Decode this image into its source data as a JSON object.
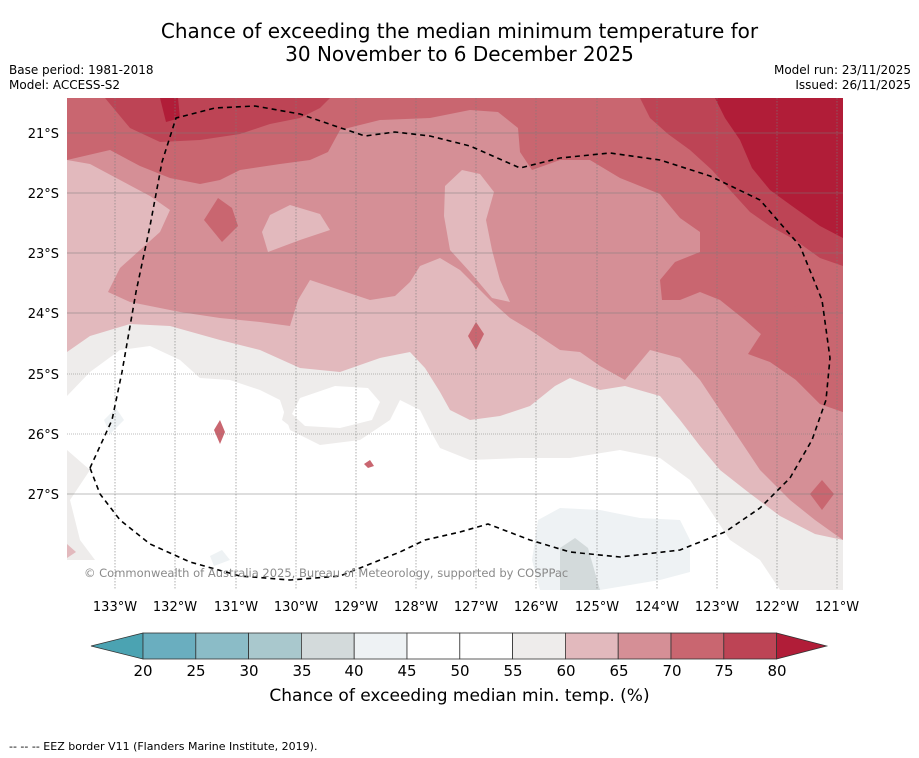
{
  "title": {
    "line1": "Chance of exceeding the median minimum temperature for",
    "line2": "30 November to 6 December 2025"
  },
  "meta": {
    "base_period": "Base period: 1981-2018",
    "model": "Model: ACCESS-S2",
    "model_run": "Model run: 23/11/2025",
    "issued": "Issued: 26/11/2025"
  },
  "map": {
    "lat_labels": [
      "21°S",
      "22°S",
      "23°S",
      "24°S",
      "25°S",
      "26°S",
      "27°S"
    ],
    "lon_labels": [
      "133°W",
      "132°W",
      "131°W",
      "130°W",
      "129°W",
      "128°W",
      "127°W",
      "126°W",
      "125°W",
      "124°W",
      "123°W",
      "122°W",
      "121°W"
    ],
    "copyright": "© Commonwealth of Australia 2025, Bureau of Meteorology, supported by COSPPac"
  },
  "colorbar": {
    "ticks": [
      "20",
      "25",
      "30",
      "35",
      "40",
      "45",
      "50",
      "55",
      "60",
      "65",
      "70",
      "75",
      "80"
    ],
    "colors": [
      "#4ba3b2",
      "#6aaebf",
      "#8bbcc7",
      "#a9c8cd",
      "#d3dadb",
      "#eef2f4",
      "#ffffff",
      "#ffffff",
      "#eeeceb",
      "#e2b9bd",
      "#d58f96",
      "#c96670",
      "#bd4455",
      "#b11d38"
    ],
    "title": "Chance of exceeding median min. temp. (%)"
  },
  "footnote": "--  --  -- EEZ border V11 (Flanders Marine Institute, 2019)."
}
